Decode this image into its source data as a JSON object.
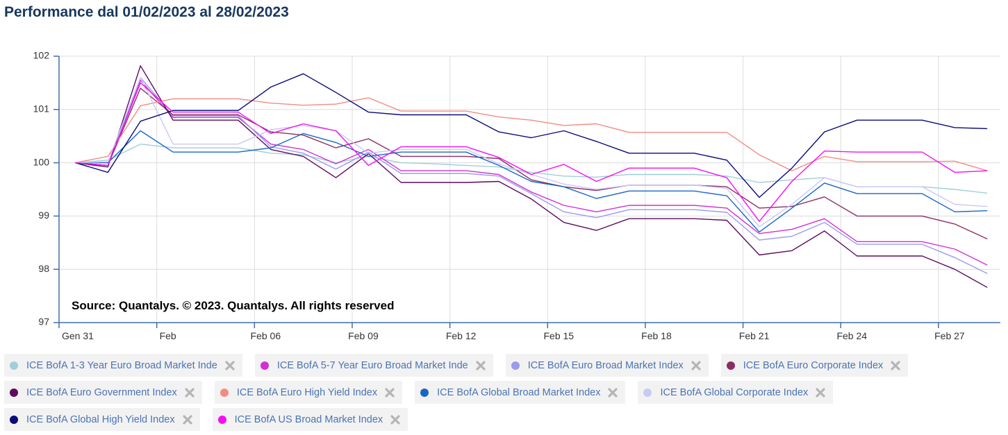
{
  "chart_data": {
    "type": "line",
    "title": "Performance dal 01/02/2023 al 28/02/2023",
    "annotation": "Source: Quantalys. © 2023. Quantalys. All rights reserved",
    "x": [
      0,
      1,
      2,
      3,
      4,
      5,
      6,
      7,
      8,
      9,
      10,
      11,
      12,
      13,
      14,
      15,
      16,
      17,
      18,
      19,
      20,
      21,
      22,
      23,
      24,
      25,
      26,
      27,
      28
    ],
    "xlim": [
      -0.5,
      28.4
    ],
    "xticks": [
      {
        "value": -0.5,
        "label": "Gen 31"
      },
      {
        "value": 2.5,
        "label": "Feb"
      },
      {
        "value": 5.5,
        "label": "Feb 06"
      },
      {
        "value": 8.5,
        "label": "Feb 09"
      },
      {
        "value": 11.5,
        "label": "Feb 12"
      },
      {
        "value": 14.5,
        "label": "Feb 15"
      },
      {
        "value": 17.5,
        "label": "Feb 18"
      },
      {
        "value": 20.5,
        "label": "Feb 21"
      },
      {
        "value": 23.5,
        "label": "Feb 24"
      },
      {
        "value": 26.5,
        "label": "Feb 27"
      }
    ],
    "ylim": [
      97,
      102
    ],
    "yticks": [
      97,
      98,
      99,
      100,
      101,
      102
    ],
    "grid": true,
    "series": [
      {
        "name": "ICE BofA 1-3 Year Euro Broad Market Inde",
        "color": "#9fcfd8",
        "values": [
          100,
          100.05,
          100.35,
          100.28,
          100.28,
          100.28,
          100.18,
          100.15,
          100.0,
          100.12,
          100.0,
          99.98,
          99.95,
          99.92,
          99.82,
          99.75,
          99.73,
          99.78,
          99.78,
          99.78,
          99.75,
          99.63,
          99.68,
          99.72,
          99.55,
          99.55,
          99.55,
          99.5,
          99.43
        ]
      },
      {
        "name": "ICE BofA 5-7 Year Euro Broad Market Inde",
        "color": "#d22fd4",
        "values": [
          100,
          99.95,
          101.55,
          100.85,
          100.85,
          100.85,
          100.35,
          100.25,
          99.98,
          100.25,
          99.85,
          99.85,
          99.85,
          99.78,
          99.45,
          99.2,
          99.08,
          99.2,
          99.2,
          99.2,
          99.15,
          98.67,
          98.75,
          98.95,
          98.52,
          98.52,
          98.52,
          98.38,
          98.08
        ]
      },
      {
        "name": "ICE BofA Euro Broad Market Index",
        "color": "#9a9af0",
        "values": [
          100,
          99.95,
          101.6,
          100.88,
          100.88,
          100.88,
          100.3,
          100.18,
          99.88,
          100.2,
          99.8,
          99.8,
          99.8,
          99.75,
          99.42,
          99.08,
          98.97,
          99.12,
          99.12,
          99.12,
          99.07,
          98.55,
          98.62,
          98.88,
          98.47,
          98.47,
          98.47,
          98.22,
          97.92
        ]
      },
      {
        "name": "ICE BofA Euro Corporate Index",
        "color": "#8b2e62",
        "values": [
          100,
          99.95,
          101.4,
          100.9,
          100.9,
          100.9,
          100.58,
          100.52,
          100.28,
          100.45,
          100.12,
          100.12,
          100.12,
          100.08,
          99.68,
          99.55,
          99.48,
          99.58,
          99.58,
          99.58,
          99.55,
          99.15,
          99.18,
          99.36,
          99.0,
          99.0,
          99.0,
          98.85,
          98.57
        ]
      },
      {
        "name": "ICE BofA Euro Government Index",
        "color": "#5c0a5e",
        "values": [
          100,
          99.92,
          101.82,
          100.8,
          100.8,
          100.8,
          100.25,
          100.12,
          99.72,
          100.17,
          99.63,
          99.63,
          99.63,
          99.65,
          99.32,
          98.88,
          98.73,
          98.95,
          98.95,
          98.95,
          98.92,
          98.27,
          98.35,
          98.72,
          98.25,
          98.25,
          98.25,
          98.0,
          97.66
        ]
      },
      {
        "name": "ICE BofA Euro High Yield Index",
        "color": "#f28b82",
        "values": [
          100,
          100.12,
          101.07,
          101.2,
          101.2,
          101.2,
          101.12,
          101.08,
          101.1,
          101.22,
          100.97,
          100.97,
          100.97,
          100.86,
          100.8,
          100.7,
          100.73,
          100.57,
          100.57,
          100.57,
          100.57,
          100.15,
          99.85,
          100.12,
          100.02,
          100.02,
          100.02,
          100.03,
          99.85
        ]
      },
      {
        "name": "ICE BofA Global Broad Market Index",
        "color": "#1767c8",
        "values": [
          100,
          100.0,
          100.6,
          100.2,
          100.2,
          100.2,
          100.28,
          100.55,
          100.38,
          100.12,
          100.2,
          100.2,
          100.2,
          99.95,
          99.65,
          99.55,
          99.33,
          99.47,
          99.47,
          99.47,
          99.38,
          98.7,
          99.15,
          99.62,
          99.42,
          99.42,
          99.42,
          99.08,
          99.1
        ]
      },
      {
        "name": "ICE BofA Global Corporate Index",
        "color": "#c9c9f6",
        "values": [
          100,
          100.02,
          101.6,
          100.35,
          100.35,
          100.35,
          100.62,
          100.7,
          100.6,
          100.18,
          100.25,
          100.25,
          100.25,
          99.98,
          99.78,
          99.6,
          99.5,
          99.58,
          99.58,
          99.58,
          99.52,
          98.8,
          99.22,
          99.72,
          99.55,
          99.55,
          99.55,
          99.22,
          99.18
        ]
      },
      {
        "name": "ICE BofA Global High Yield Index",
        "color": "#0a0a7a",
        "values": [
          100,
          99.82,
          100.78,
          100.98,
          100.98,
          100.98,
          101.42,
          101.67,
          101.32,
          100.95,
          100.9,
          100.9,
          100.9,
          100.58,
          100.47,
          100.6,
          100.4,
          100.18,
          100.18,
          100.18,
          100.05,
          99.35,
          99.9,
          100.58,
          100.8,
          100.8,
          100.8,
          100.66,
          100.64
        ]
      },
      {
        "name": "ICE BofA US Broad Market Index",
        "color": "#f50ff5",
        "values": [
          100,
          99.95,
          101.5,
          100.95,
          100.95,
          100.95,
          100.55,
          100.73,
          100.6,
          99.95,
          100.3,
          100.3,
          100.3,
          100.1,
          99.78,
          99.97,
          99.65,
          99.9,
          99.9,
          99.9,
          99.72,
          98.9,
          99.65,
          100.22,
          100.2,
          100.2,
          100.2,
          99.82,
          99.85
        ]
      }
    ]
  }
}
